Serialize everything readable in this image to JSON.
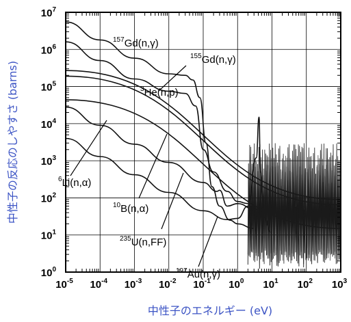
{
  "chart_data": {
    "type": "line",
    "xlabel": "中性子のエネルギー (eV)",
    "ylabel": "中性子の反応のしやすさ (barns)",
    "xscale": "log",
    "yscale": "log",
    "xlim": [
      1e-05,
      1000
    ],
    "ylim": [
      1,
      10000000.0
    ],
    "grid": true,
    "axis_color": "#000000",
    "label_color": "#3b53c4",
    "x_ticks": [
      {
        "base": "10",
        "exp": "-5"
      },
      {
        "base": "10",
        "exp": "-4"
      },
      {
        "base": "10",
        "exp": "-3"
      },
      {
        "base": "10",
        "exp": "-2"
      },
      {
        "base": "10",
        "exp": "-1"
      },
      {
        "base": "10",
        "exp": "0"
      },
      {
        "base": "10",
        "exp": "1"
      },
      {
        "base": "10",
        "exp": "2"
      },
      {
        "base": "10",
        "exp": "3"
      }
    ],
    "y_ticks": [
      {
        "base": "10",
        "exp": "0"
      },
      {
        "base": "10",
        "exp": "1"
      },
      {
        "base": "10",
        "exp": "2"
      },
      {
        "base": "10",
        "exp": "3"
      },
      {
        "base": "10",
        "exp": "4"
      },
      {
        "base": "10",
        "exp": "5"
      },
      {
        "base": "10",
        "exp": "6"
      },
      {
        "base": "10",
        "exp": "7"
      }
    ],
    "series": [
      {
        "mass": "157",
        "text": "Gd(n,",
        "greek": "γ",
        "close": ")",
        "points": [
          [
            1e-05,
            5500000.0
          ],
          [
            0.0001,
            1800000.0
          ],
          [
            0.001,
            580000.0
          ],
          [
            0.01,
            220000.0
          ],
          [
            0.03,
            200000.0
          ],
          [
            0.05,
            150000.0
          ],
          [
            0.08,
            50000.0
          ],
          [
            0.12,
            3000.0
          ],
          [
            0.18,
            200
          ],
          [
            0.3,
            60
          ],
          [
            0.6,
            25
          ],
          [
            1,
            20
          ],
          [
            3,
            15
          ]
        ]
      },
      {
        "mass": "155",
        "text": "Gd(n,",
        "greek": "γ",
        "close": ")",
        "points": [
          [
            1e-05,
            1600000.0
          ],
          [
            0.0001,
            500000.0
          ],
          [
            0.001,
            160000.0
          ],
          [
            0.01,
            75000.0
          ],
          [
            0.03,
            65000.0
          ],
          [
            0.06,
            30000.0
          ],
          [
            0.1,
            2000.0
          ],
          [
            0.2,
            500
          ],
          [
            0.5,
            150
          ],
          [
            1,
            80
          ],
          [
            2,
            70
          ]
        ]
      },
      {
        "mass": "3",
        "text": "He(n,p)",
        "greek": "",
        "close": "",
        "points": [
          [
            1e-05,
            270000.0
          ],
          [
            1000,
            90
          ]
        ]
      },
      {
        "mass": "10",
        "text": "B(n,",
        "greek": "α",
        "close": ")",
        "points": [
          [
            1e-05,
            190000.0
          ],
          [
            1000,
            65
          ]
        ]
      },
      {
        "mass": "6",
        "text": "Li(n,",
        "greek": "α",
        "close": ")",
        "points": [
          [
            1e-05,
            44000.0
          ],
          [
            1000,
            15
          ]
        ]
      },
      {
        "mass": "235",
        "text": "U(n,FF)",
        "greek": "",
        "close": "",
        "points": [
          [
            1e-05,
            28000.0
          ],
          [
            0.0001,
            9000.0
          ],
          [
            0.001,
            2800.0
          ],
          [
            0.01,
            900
          ],
          [
            0.1,
            260
          ],
          [
            0.25,
            150
          ],
          [
            0.3,
            160
          ],
          [
            0.5,
            60
          ],
          [
            1,
            70
          ],
          [
            3,
            50
          ],
          [
            10,
            40
          ]
        ]
      },
      {
        "mass": "197",
        "text": "Au(n,",
        "greek": "γ",
        "close": ")",
        "points": [
          [
            1e-05,
            4000.0
          ],
          [
            0.0001,
            1300.0
          ],
          [
            0.001,
            420
          ],
          [
            0.01,
            140
          ],
          [
            0.1,
            45
          ],
          [
            0.5,
            26
          ],
          [
            1,
            28
          ],
          [
            2,
            60
          ],
          [
            3.5,
            1200
          ],
          [
            4.2,
            15000
          ],
          [
            4.6,
            500
          ],
          [
            6,
            30
          ],
          [
            9,
            12
          ]
        ]
      }
    ]
  }
}
